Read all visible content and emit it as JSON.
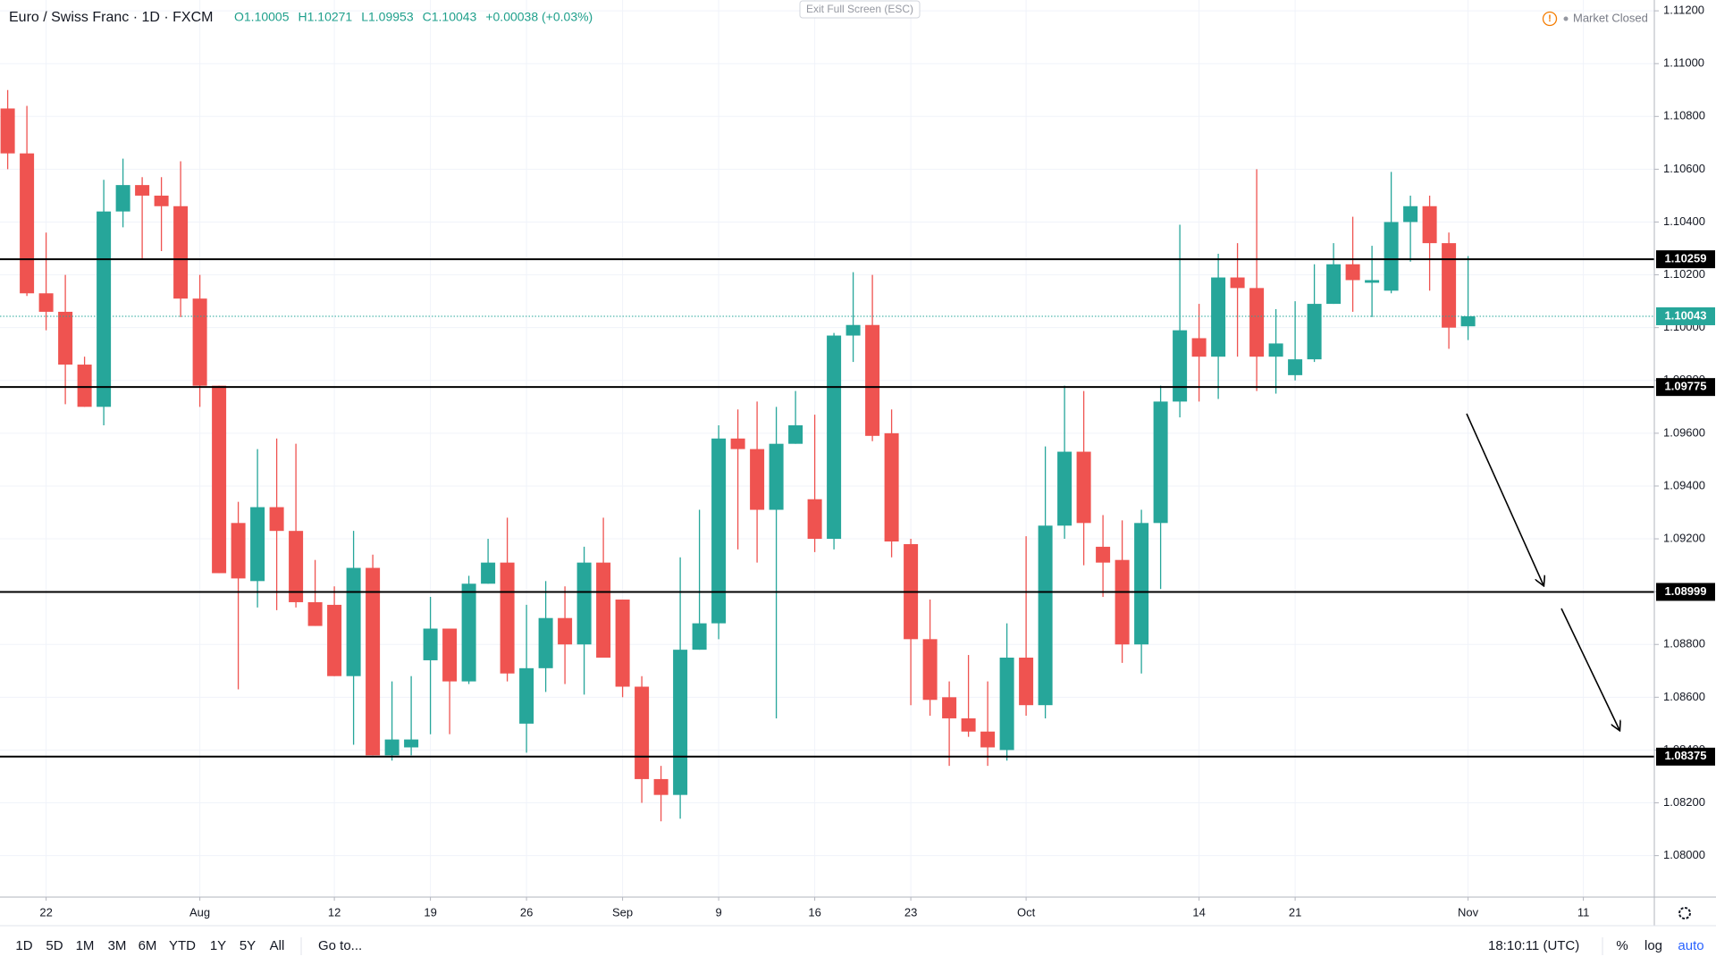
{
  "chart_data": {
    "type": "candlestick",
    "title": "Euro / Swiss Franc · 1D · FXCM",
    "legend_values": [
      "O1.10005",
      "H1.10271",
      "L1.09953",
      "C1.10043",
      "+0.00038 (+0.03%)"
    ],
    "categories": [
      null,
      null,
      "22",
      null,
      null,
      null,
      null,
      null,
      null,
      null,
      "Aug",
      null,
      null,
      null,
      null,
      null,
      null,
      "12",
      null,
      null,
      null,
      null,
      "19",
      null,
      null,
      null,
      null,
      "26",
      null,
      null,
      null,
      null,
      "Sep",
      null,
      null,
      null,
      null,
      "9",
      null,
      null,
      null,
      null,
      "16",
      null,
      null,
      null,
      null,
      "23",
      null,
      null,
      null,
      null,
      null,
      "Oct",
      null,
      null,
      null,
      null,
      null,
      null,
      null,
      null,
      "14",
      null,
      null,
      null,
      null,
      "21",
      null,
      null,
      null,
      null,
      null,
      null,
      null,
      null,
      "Nov",
      null,
      null,
      null,
      null,
      null,
      "11"
    ],
    "open": [
      1.1083,
      1.1066,
      1.1013,
      1.1006,
      1.0986,
      1.097,
      1.1044,
      1.1054,
      1.105,
      1.1046,
      1.1011,
      1.0978,
      1.0926,
      1.0904,
      1.0932,
      1.0923,
      1.0896,
      1.0895,
      1.0868,
      1.0909,
      1.0838,
      1.0841,
      1.0874,
      1.0886,
      1.0866,
      1.0903,
      1.0911,
      1.085,
      1.0871,
      1.089,
      1.088,
      1.0911,
      1.0897,
      1.0864,
      1.0829,
      1.0823,
      1.0878,
      1.0888,
      1.0958,
      1.0954,
      1.0931,
      1.0956,
      1.0935,
      1.092,
      1.0997,
      1.1001,
      1.096,
      1.0918,
      1.0882,
      1.086,
      1.0852,
      1.0847,
      1.084,
      1.0875,
      1.0857,
      1.0925,
      1.0953,
      1.0917,
      1.0912,
      1.088,
      1.0926,
      1.0972,
      1.0996,
      1.0989,
      1.1019,
      1.1015,
      1.0989,
      1.0982,
      1.0988,
      1.1009,
      1.1024,
      1.1017,
      1.1014,
      1.104,
      1.1046,
      1.1032,
      1.10005,
      null,
      null,
      null,
      null,
      null,
      null
    ],
    "high": [
      1.109,
      1.1084,
      1.1036,
      1.102,
      1.0989,
      1.1056,
      1.1064,
      1.1057,
      1.1057,
      1.1063,
      1.102,
      1.0978,
      1.0934,
      1.0954,
      1.0958,
      1.0956,
      1.0912,
      1.0902,
      1.0923,
      1.0914,
      1.0866,
      1.0868,
      1.0898,
      1.0884,
      1.0906,
      1.092,
      1.0928,
      1.0895,
      1.0904,
      1.0902,
      1.0917,
      1.0928,
      1.0897,
      1.0868,
      1.0834,
      1.0913,
      1.0931,
      1.0963,
      1.0969,
      1.0972,
      1.097,
      1.0976,
      1.0967,
      1.0998,
      1.1021,
      1.102,
      1.0969,
      1.092,
      1.0897,
      1.0866,
      1.0876,
      1.0866,
      1.0888,
      1.0921,
      1.0955,
      1.0978,
      1.0976,
      1.0929,
      1.0927,
      1.0931,
      1.0978,
      1.1039,
      1.1009,
      1.1028,
      1.1032,
      1.106,
      1.1007,
      1.101,
      1.1024,
      1.1032,
      1.1042,
      1.1031,
      1.1059,
      1.105,
      1.105,
      1.1036,
      1.10271,
      null,
      null,
      null,
      null,
      null,
      null
    ],
    "low": [
      1.106,
      1.1012,
      1.0999,
      1.0971,
      1.097,
      1.0963,
      1.1038,
      1.1026,
      1.1029,
      1.1004,
      1.097,
      1.0907,
      1.0863,
      1.0894,
      1.0893,
      1.0894,
      1.0887,
      1.0868,
      1.0842,
      1.0838,
      1.0836,
      1.0838,
      1.0846,
      1.0846,
      1.0865,
      1.0903,
      1.0866,
      1.0839,
      1.0862,
      1.0865,
      1.0861,
      1.0875,
      1.086,
      1.082,
      1.0813,
      1.0814,
      1.0878,
      1.0882,
      1.0916,
      1.0911,
      1.0852,
      1.0956,
      1.0915,
      1.0916,
      1.0987,
      1.0957,
      1.0913,
      1.0857,
      1.0853,
      1.0834,
      1.0845,
      1.0834,
      1.0836,
      1.0853,
      1.0852,
      1.092,
      1.091,
      1.0898,
      1.0873,
      1.0869,
      1.0901,
      1.0966,
      1.0972,
      1.0973,
      1.0989,
      1.0976,
      1.0975,
      1.098,
      1.0987,
      1.1009,
      1.1006,
      1.1004,
      1.1013,
      1.1025,
      1.1014,
      1.0992,
      1.09953,
      null,
      null,
      null,
      null,
      null,
      null
    ],
    "close": [
      1.1066,
      1.1013,
      1.1006,
      1.0986,
      1.097,
      1.1044,
      1.1054,
      1.105,
      1.1046,
      1.1011,
      1.0978,
      1.0907,
      1.0905,
      1.0932,
      1.0923,
      1.0896,
      1.0887,
      1.0868,
      1.0909,
      1.0838,
      1.0844,
      1.0844,
      1.0886,
      1.0866,
      1.0903,
      1.0911,
      1.0869,
      1.0871,
      1.089,
      1.088,
      1.0911,
      1.0875,
      1.0864,
      1.0829,
      1.0823,
      1.0878,
      1.0888,
      1.0958,
      1.0954,
      1.0931,
      1.0956,
      1.0963,
      1.092,
      1.0997,
      1.1001,
      1.0959,
      1.0919,
      1.0882,
      1.0859,
      1.0852,
      1.0847,
      1.0841,
      1.0875,
      1.0857,
      1.0925,
      1.0953,
      1.0926,
      1.0911,
      1.088,
      1.0926,
      1.0972,
      1.0999,
      1.0989,
      1.1019,
      1.1015,
      1.0989,
      1.0994,
      1.0988,
      1.1009,
      1.1024,
      1.1018,
      1.1018,
      1.104,
      1.1046,
      1.1032,
      1.1,
      1.10043,
      null,
      null,
      null,
      null,
      null,
      null
    ],
    "up_color": "#26a69a",
    "down_color": "#ef5350",
    "ylim": [
      1.07843,
      1.11241
    ],
    "yticks": [
      {
        "value": 1.08,
        "label": "1.08000"
      },
      {
        "value": 1.082,
        "label": "1.08200"
      },
      {
        "value": 1.084,
        "label": "1.08400"
      },
      {
        "value": 1.086,
        "label": "1.08600"
      },
      {
        "value": 1.088,
        "label": "1.08800"
      },
      {
        "value": 1.09,
        "label": "1.09000"
      },
      {
        "value": 1.092,
        "label": "1.09200"
      },
      {
        "value": 1.094,
        "label": "1.09400"
      },
      {
        "value": 1.096,
        "label": "1.09600"
      },
      {
        "value": 1.098,
        "label": "1.09800"
      },
      {
        "value": 1.1,
        "label": "1.10000"
      },
      {
        "value": 1.102,
        "label": "1.10200"
      },
      {
        "value": 1.104,
        "label": "1.10400"
      },
      {
        "value": 1.106,
        "label": "1.10600"
      },
      {
        "value": 1.108,
        "label": "1.10800"
      },
      {
        "value": 1.11,
        "label": "1.11000"
      },
      {
        "value": 1.112,
        "label": "1.11200"
      }
    ],
    "levels": [
      1.10259,
      1.09775,
      1.08999,
      1.08375
    ],
    "level_color": "#000000",
    "last_price": 1.10043,
    "grid": true
  },
  "top_bar": {
    "exit_fullscreen": "Exit Full Screen (ESC)",
    "market_status": "Market Closed"
  },
  "bottom_bar": {
    "ranges": [
      "1D",
      "5D",
      "1M",
      "3M",
      "6M",
      "YTD",
      "1Y",
      "5Y",
      "All"
    ],
    "goto": "Go to...",
    "clock": "18:10:11 (UTC)",
    "options": [
      "%",
      "log",
      "auto"
    ]
  }
}
